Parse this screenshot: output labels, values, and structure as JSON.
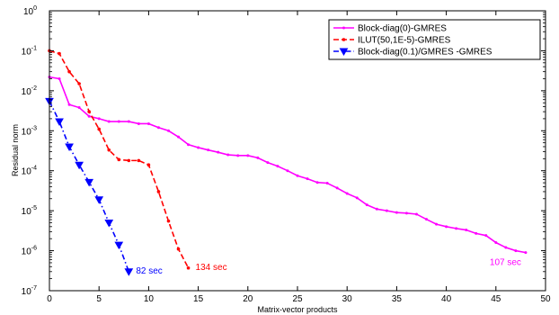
{
  "chart_data": {
    "type": "line",
    "xlabel": "Matrix-vector products",
    "ylabel": "Residual norm",
    "xlim": [
      0,
      50
    ],
    "ylim_log10": [
      -7,
      0
    ],
    "yscale": "log",
    "grid": false,
    "legend_position": "top-right",
    "x_ticks": [
      "0",
      "5",
      "10",
      "15",
      "20",
      "25",
      "30",
      "35",
      "40",
      "45",
      "50"
    ],
    "y_tick_mantissa": "10",
    "y_tick_exponents": [
      "0",
      "-1",
      "-2",
      "-3",
      "-4",
      "-5",
      "-6",
      "-7"
    ],
    "series": [
      {
        "name": "Block-diag(0)-GMRES",
        "color": "#ff00ff",
        "line_style": "solid",
        "marker": "point",
        "x": [
          0,
          1,
          2,
          3,
          4,
          5,
          6,
          7,
          8,
          9,
          10,
          11,
          12,
          13,
          14,
          15,
          16,
          17,
          18,
          19,
          20,
          21,
          22,
          23,
          24,
          25,
          26,
          27,
          28,
          29,
          30,
          31,
          32,
          33,
          34,
          35,
          36,
          37,
          38,
          39,
          40,
          41,
          42,
          43,
          44,
          45,
          46,
          47,
          48
        ],
        "y": [
          0.022,
          0.02,
          0.0045,
          0.0038,
          0.0023,
          0.002,
          0.0017,
          0.0017,
          0.0017,
          0.0015,
          0.0015,
          0.0012,
          0.001,
          0.0007,
          0.00045,
          0.00038,
          0.00033,
          0.00029,
          0.00025,
          0.00024,
          0.00024,
          0.00021,
          0.00016,
          0.00013,
          0.0001,
          7.5e-05,
          6.3e-05,
          5.1e-05,
          4.9e-05,
          3.7e-05,
          2.7e-05,
          2.1e-05,
          1.4e-05,
          1.1e-05,
          1e-05,
          9e-06,
          8.7e-06,
          8.2e-06,
          6.1e-06,
          4.6e-06,
          4e-06,
          3.6e-06,
          3.3e-06,
          2.7e-06,
          2.4e-06,
          1.6e-06,
          1.2e-06,
          1e-06,
          9e-07
        ],
        "annotation": "107 sec"
      },
      {
        "name": "ILUT(50,1E-5)-GMRES",
        "color": "#ff0000",
        "line_style": "dashed",
        "marker": "dot",
        "x": [
          0,
          1,
          2,
          3,
          4,
          5,
          6,
          7,
          8,
          9,
          10,
          11,
          12,
          13,
          14
        ],
        "y": [
          0.1,
          0.085,
          0.03,
          0.015,
          0.003,
          0.0011,
          0.00033,
          0.00019,
          0.00018,
          0.00018,
          0.00014,
          3e-05,
          5.5e-06,
          1.1e-06,
          3.7e-07
        ],
        "annotation": "134 sec"
      },
      {
        "name": "Block-diag(0.1)/GMRES -GMRES",
        "color": "#0000ff",
        "line_style": "dashdot",
        "marker": "triangle-down",
        "x": [
          0,
          1,
          2,
          3,
          4,
          5,
          6,
          7,
          8
        ],
        "y": [
          0.0055,
          0.0017,
          0.0004,
          0.00014,
          5.2e-05,
          1.9e-05,
          5e-06,
          1.4e-06,
          3e-07
        ],
        "annotation": "82 sec"
      }
    ]
  }
}
